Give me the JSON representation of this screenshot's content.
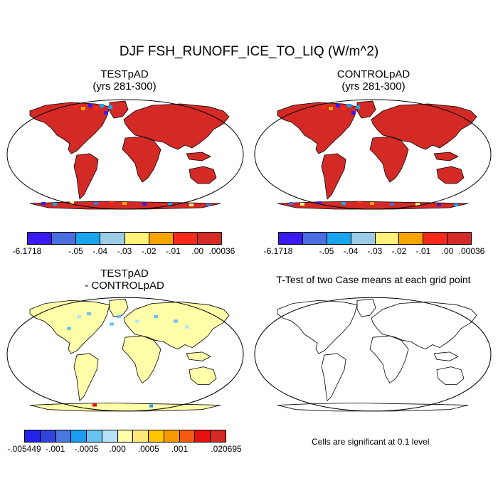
{
  "title": "DJF FSH_RUNOFF_ICE_TO_LIQ (W/m^2)",
  "panels": {
    "test": {
      "line1": "TESTpAD",
      "line2": "(yrs 281-300)"
    },
    "control": {
      "line1": "CONTROLpAD",
      "line2": "(yrs 281-300)"
    },
    "diff": {
      "line1": "TESTpAD",
      "line2": "- CONTROLpAD"
    },
    "ttest": {
      "line1": "T-Test of two Case means at each grid point"
    }
  },
  "colorbar_top": {
    "colors": [
      "#3b1af0",
      "#4a6ee0",
      "#1aa4ee",
      "#9ccbe6",
      "#fff27a",
      "#f7a400",
      "#f52a18",
      "#d42a26"
    ],
    "labels": [
      "-6.1718",
      "-.05",
      "-.04",
      "-.03",
      "-.02",
      "-.01",
      ".00",
      ".00036"
    ]
  },
  "colorbar_diff": {
    "colors": [
      "#2222e8",
      "#3344dd",
      "#4a78e0",
      "#1a9cf0",
      "#66c2f0",
      "#b8e2f8",
      "#ffffaa",
      "#ffe87a",
      "#ffc400",
      "#f59a00",
      "#f55a10",
      "#e81010",
      "#d42a26"
    ],
    "labels": [
      "-.005449",
      "-.001",
      "-.0005",
      ".000",
      ".0005",
      ".001",
      ".020695"
    ]
  },
  "note": "Cells are significant at 0.1 level",
  "colors": {
    "land_test": "#d42a26",
    "land_diff": "#ffffaa",
    "coast": "#000000",
    "ocean": "#ffffff"
  }
}
